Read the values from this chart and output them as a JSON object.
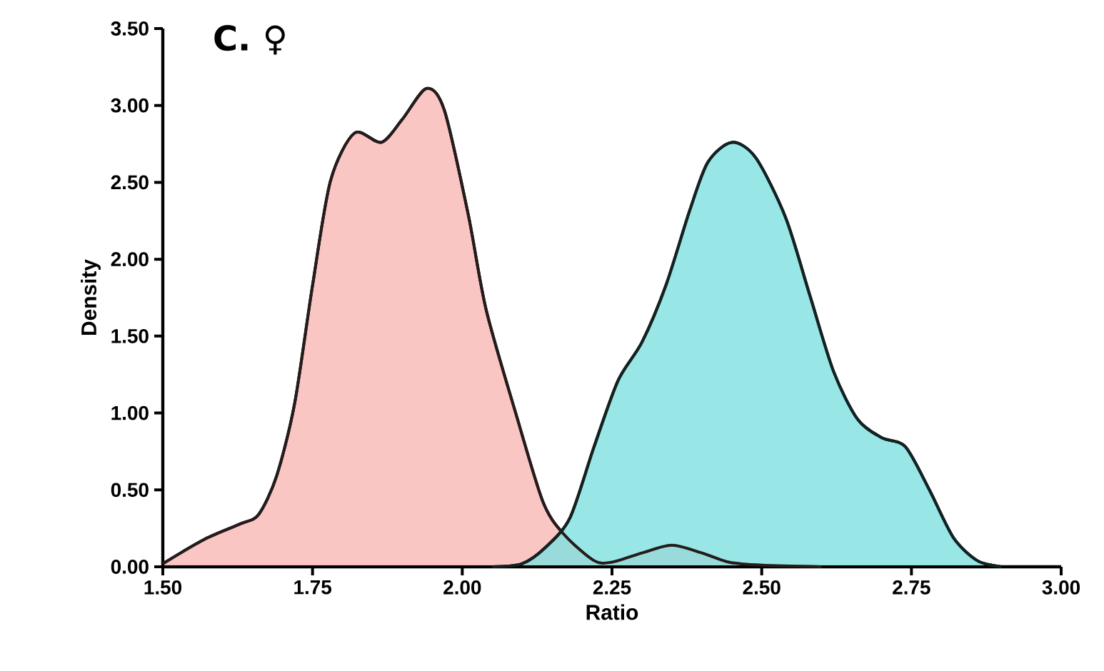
{
  "chart_data": {
    "type": "area",
    "title": "C. ♀",
    "xlabel": "Ratio",
    "ylabel": "Density",
    "xlim": [
      1.5,
      3.0
    ],
    "ylim": [
      0,
      3.5
    ],
    "xticks": [
      {
        "value": 1.5,
        "label": "1.50"
      },
      {
        "value": 1.75,
        "label": "1.75"
      },
      {
        "value": 2.0,
        "label": "2.00"
      },
      {
        "value": 2.25,
        "label": "2.25"
      },
      {
        "value": 2.5,
        "label": "2.50"
      },
      {
        "value": 2.75,
        "label": "2.75"
      },
      {
        "value": 3.0,
        "label": "3.00"
      }
    ],
    "yticks": [
      {
        "value": 0,
        "label": "0.00"
      },
      {
        "value": 0.5,
        "label": "0.50"
      },
      {
        "value": 1.0,
        "label": "1.00"
      },
      {
        "value": 1.5,
        "label": "1.50"
      },
      {
        "value": 2.0,
        "label": "2.00"
      },
      {
        "value": 2.5,
        "label": "2.50"
      },
      {
        "value": 3.0,
        "label": "3.00"
      },
      {
        "value": 3.5,
        "label": "3.50"
      }
    ],
    "series": [
      {
        "color": "#f9b8b4",
        "x": [
          1.5,
          1.57,
          1.63,
          1.66,
          1.69,
          1.72,
          1.75,
          1.78,
          1.82,
          1.865,
          1.9,
          1.94,
          1.97,
          2.01,
          2.04,
          2.09,
          2.135,
          2.17,
          2.22,
          2.25,
          2.3,
          2.35,
          2.4,
          2.445,
          2.5,
          2.6
        ],
        "values": [
          0.02,
          0.18,
          0.28,
          0.34,
          0.59,
          1.06,
          1.83,
          2.51,
          2.82,
          2.76,
          2.91,
          3.11,
          2.97,
          2.29,
          1.67,
          0.99,
          0.42,
          0.21,
          0.04,
          0.03,
          0.09,
          0.14,
          0.09,
          0.03,
          0.01,
          0
        ]
      },
      {
        "color": "#80e0e0",
        "x": [
          2.05,
          2.1,
          2.14,
          2.18,
          2.22,
          2.26,
          2.3,
          2.34,
          2.38,
          2.41,
          2.45,
          2.49,
          2.54,
          2.58,
          2.62,
          2.66,
          2.7,
          2.74,
          2.78,
          2.82,
          2.86,
          2.9
        ],
        "values": [
          0,
          0.02,
          0.13,
          0.32,
          0.78,
          1.21,
          1.46,
          1.83,
          2.32,
          2.63,
          2.76,
          2.66,
          2.27,
          1.77,
          1.27,
          0.96,
          0.84,
          0.78,
          0.5,
          0.19,
          0.04,
          0
        ]
      }
    ]
  }
}
